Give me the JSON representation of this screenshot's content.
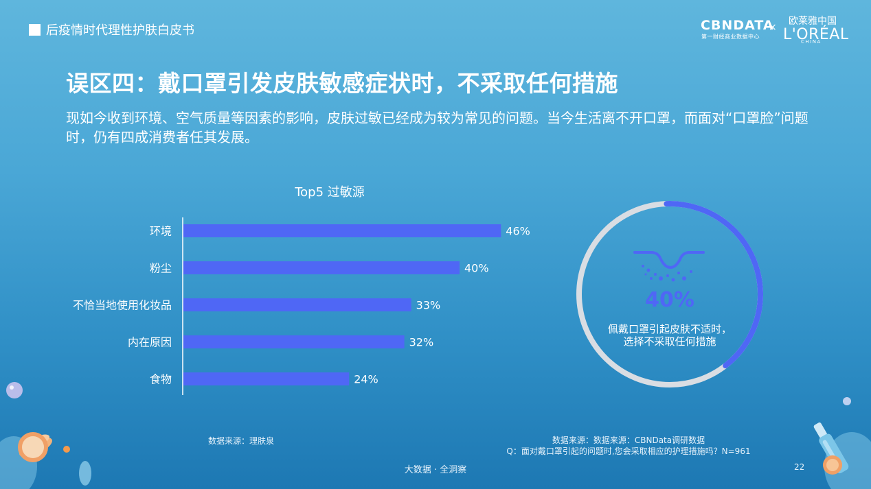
{
  "header": {
    "tag": "后疫情时代理性护肤白皮书",
    "brand_cbn": "CBNDATA",
    "brand_cbn_sub": "第一财经商业数据中心",
    "brand_sep": "×",
    "brand_loreal_cn": "欧莱雅中国",
    "brand_loreal": "L'ORÉAL",
    "brand_china": "CHINA"
  },
  "title": "误区四：戴口罩引发皮肤敏感症状时，不采取任何措施",
  "subtitle": "现如今收到环境、空气质量等因素的影响，皮肤过敏已经成为较为常见的问题。当今生活离不开口罩，而面对“口罩脸”问题时，仍有四成消费者任其发展。",
  "chart_data": [
    {
      "type": "bar",
      "orientation": "horizontal",
      "title": "Top5 过敏源",
      "categories": [
        "环境",
        "粉尘",
        "不恰当地使用化妆品",
        "内在原因",
        "食物"
      ],
      "values": [
        46,
        40,
        33,
        32,
        24
      ],
      "value_labels": [
        "46%",
        "40%",
        "33%",
        "32%",
        "24%"
      ],
      "unit": "%",
      "xlim": [
        0,
        50
      ],
      "bar_color": "#4f67f5",
      "grid": false
    },
    {
      "type": "pie",
      "style": "donut",
      "value": 40,
      "value_label": "40%",
      "label_lines": [
        "佩戴口罩引起皮肤不适时，",
        "选择不采取任何措施"
      ],
      "colors": {
        "filled": "#4f67f5",
        "remaining": "#d9dde3"
      }
    }
  ],
  "sources": {
    "left": "数据来源：理肤泉",
    "right_line1": "数据来源：数据来源：CBNData调研数据",
    "right_line2": "Q：面对戴口罩引起的问题时,您会采取相应的护理措施吗？N=961"
  },
  "footer": "大数据 · 全洞察",
  "page_number": "22",
  "icons": [
    "skin-bumps-icon",
    "cosmetic-jar-icon",
    "serum-bottle-icon"
  ],
  "colors": {
    "accent": "#4f67f5",
    "background_top": "#5fb6dd",
    "background_bottom": "#1d78b3"
  }
}
